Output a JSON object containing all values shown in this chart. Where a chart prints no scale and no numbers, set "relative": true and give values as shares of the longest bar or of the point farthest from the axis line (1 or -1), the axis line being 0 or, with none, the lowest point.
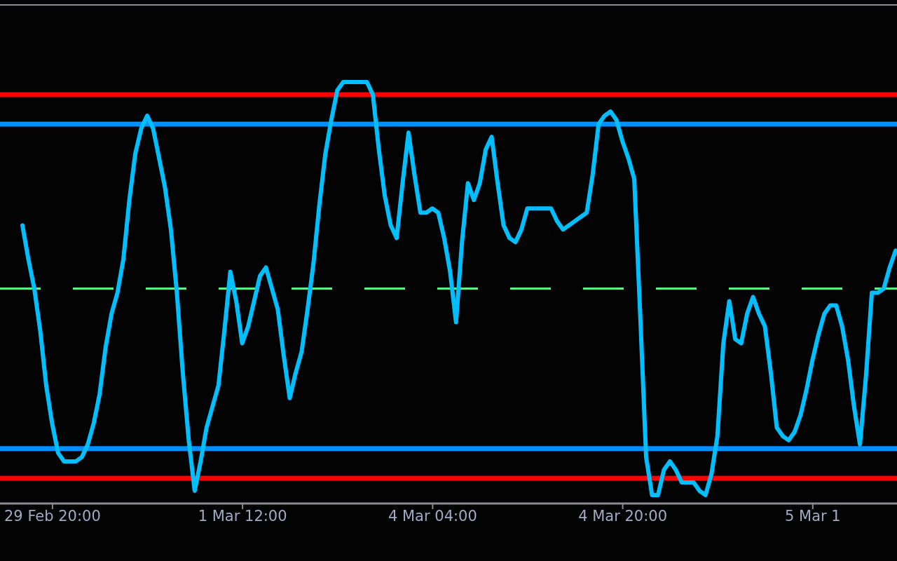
{
  "chart_data": {
    "type": "line",
    "relative": true,
    "categories": [
      null,
      null,
      null,
      null,
      null,
      "29 Feb 20:00",
      null,
      null,
      null,
      null,
      null,
      null,
      null,
      null,
      null,
      null,
      null,
      null,
      null,
      null,
      null,
      null,
      null,
      null,
      null,
      null,
      null,
      null,
      null,
      null,
      null,
      null,
      null,
      null,
      null,
      null,
      null,
      "1 Mar 12:00",
      null,
      null,
      null,
      null,
      null,
      null,
      null,
      null,
      null,
      null,
      null,
      null,
      null,
      null,
      null,
      null,
      null,
      null,
      null,
      null,
      null,
      null,
      null,
      null,
      null,
      null,
      null,
      null,
      null,
      null,
      null,
      "4 Mar 04:00",
      null,
      null,
      null,
      null,
      null,
      null,
      null,
      null,
      null,
      null,
      null,
      null,
      null,
      null,
      null,
      null,
      null,
      null,
      null,
      null,
      null,
      null,
      null,
      null,
      null,
      null,
      null,
      null,
      null,
      null,
      null,
      "4 Mar 20:00",
      null,
      null,
      null,
      null,
      null,
      null,
      null,
      null,
      null,
      null,
      null,
      null,
      null,
      null,
      null,
      null,
      null,
      null,
      null,
      null,
      null,
      null,
      null,
      null,
      null,
      null,
      null,
      null,
      null,
      null,
      null,
      "5 Mar 1",
      null,
      null,
      null,
      null,
      null,
      null,
      null,
      null,
      null,
      null,
      null,
      null,
      null,
      null
    ],
    "grid": false,
    "legend": false,
    "marker": "none",
    "series": [
      {
        "color": "#00bfff",
        "line_style": "solid",
        "values": [
          0.66,
          0.58,
          0.51,
          0.41,
          0.28,
          0.19,
          0.12,
          0.1,
          0.1,
          0.1,
          0.11,
          0.14,
          0.19,
          0.26,
          0.37,
          0.45,
          0.5,
          0.58,
          0.72,
          0.83,
          0.89,
          0.92,
          0.89,
          0.82,
          0.75,
          0.65,
          0.5,
          0.31,
          0.15,
          0.03,
          0.1,
          0.18,
          0.23,
          0.28,
          0.41,
          0.55,
          0.48,
          0.38,
          0.42,
          0.48,
          0.54,
          0.56,
          0.51,
          0.46,
          0.35,
          0.25,
          0.31,
          0.36,
          0.46,
          0.57,
          0.71,
          0.83,
          0.91,
          0.98,
          1.0,
          1.0,
          1.0,
          1.0,
          1.0,
          0.97,
          0.84,
          0.73,
          0.66,
          0.63,
          0.76,
          0.88,
          0.78,
          0.69,
          0.69,
          0.7,
          0.69,
          0.63,
          0.55,
          0.43,
          0.62,
          0.76,
          0.72,
          0.76,
          0.84,
          0.87,
          0.76,
          0.66,
          0.63,
          0.62,
          0.65,
          0.7,
          0.7,
          0.7,
          0.7,
          0.7,
          0.67,
          0.65,
          0.66,
          0.67,
          0.68,
          0.69,
          0.78,
          0.9,
          0.92,
          0.93,
          0.91,
          0.86,
          0.82,
          0.77,
          0.45,
          0.11,
          0.02,
          0.02,
          0.08,
          0.1,
          0.08,
          0.05,
          0.05,
          0.05,
          0.03,
          0.02,
          0.07,
          0.16,
          0.38,
          0.48,
          0.39,
          0.38,
          0.45,
          0.49,
          0.45,
          0.42,
          0.31,
          0.18,
          0.16,
          0.15,
          0.17,
          0.21,
          0.27,
          0.34,
          0.4,
          0.45,
          0.47,
          0.47,
          0.42,
          0.34,
          0.23,
          0.14,
          0.3,
          0.5,
          0.5,
          0.51,
          0.56,
          0.6
        ]
      }
    ],
    "ref_lines": [
      {
        "axis": "y",
        "value": 0.97,
        "color": "#ff0000",
        "line_style": "solid"
      },
      {
        "axis": "y",
        "value": 0.9,
        "color": "#0090ff",
        "line_style": "solid"
      },
      {
        "axis": "y",
        "value": 0.51,
        "color": "#5cf08a",
        "line_style": "dashed"
      },
      {
        "axis": "y",
        "value": 0.13,
        "color": "#0090ff",
        "line_style": "solid"
      },
      {
        "axis": "y",
        "value": 0.06,
        "color": "#ff0000",
        "line_style": "solid"
      }
    ]
  }
}
